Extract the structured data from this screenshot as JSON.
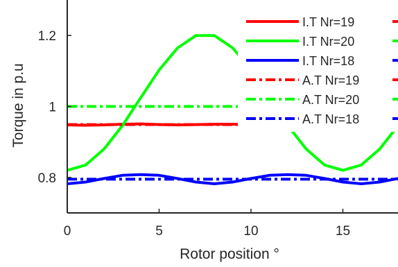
{
  "chart_data": {
    "type": "line",
    "title": "",
    "xlabel": "Rotor position °",
    "ylabel": "Torque in p.u",
    "xlim": [
      0,
      18
    ],
    "ylim": [
      0.7,
      1.3
    ],
    "xticks": [
      "0",
      "5",
      "10",
      "15"
    ],
    "yticks": [
      "0.8",
      "1",
      "1.2"
    ],
    "grid": false,
    "legend_position": "top-right",
    "series": [
      {
        "name": "I.T Nr=19",
        "color": "#ff0000",
        "style": "solid",
        "x": [
          0,
          1,
          2,
          3,
          4,
          5,
          6,
          7,
          8,
          9,
          10,
          11,
          12,
          13,
          14,
          15,
          16,
          17,
          18
        ],
        "y": [
          0.948,
          0.947,
          0.948,
          0.95,
          0.951,
          0.949,
          0.948,
          0.949,
          0.95,
          0.95,
          0.949,
          0.948,
          0.949,
          0.95,
          0.951,
          0.949,
          0.948,
          0.949,
          0.95
        ]
      },
      {
        "name": "I.T Nr=20",
        "color": "#00ff00",
        "style": "solid",
        "x": [
          0,
          1,
          2,
          3,
          4,
          5,
          6,
          7,
          8,
          9,
          10,
          11,
          12,
          13,
          14,
          15,
          16,
          17,
          18
        ],
        "y": [
          0.82,
          0.835,
          0.88,
          0.946,
          1.025,
          1.103,
          1.165,
          1.2,
          1.2,
          1.165,
          1.103,
          1.025,
          0.946,
          0.88,
          0.835,
          0.82,
          0.835,
          0.88,
          0.946
        ]
      },
      {
        "name": "I.T Nr=18",
        "color": "#0000ff",
        "style": "solid",
        "x": [
          0,
          1,
          2,
          3,
          4,
          5,
          6,
          7,
          8,
          9,
          10,
          11,
          12,
          13,
          14,
          15,
          16,
          17,
          18
        ],
        "y": [
          0.782,
          0.787,
          0.797,
          0.806,
          0.808,
          0.806,
          0.797,
          0.787,
          0.782,
          0.787,
          0.797,
          0.806,
          0.808,
          0.806,
          0.797,
          0.787,
          0.782,
          0.787,
          0.797
        ]
      },
      {
        "name": "A.T Nr=19",
        "color": "#ff0000",
        "style": "dashdot",
        "x": [
          0,
          18
        ],
        "y": [
          0.949,
          0.949
        ]
      },
      {
        "name": "A.T Nr=20",
        "color": "#00ff00",
        "style": "dashdot",
        "x": [
          0,
          18
        ],
        "y": [
          1.0,
          1.0
        ]
      },
      {
        "name": "A.T Nr=18",
        "color": "#0000ff",
        "style": "dashdot",
        "x": [
          0,
          18
        ],
        "y": [
          0.795,
          0.795
        ]
      }
    ]
  }
}
